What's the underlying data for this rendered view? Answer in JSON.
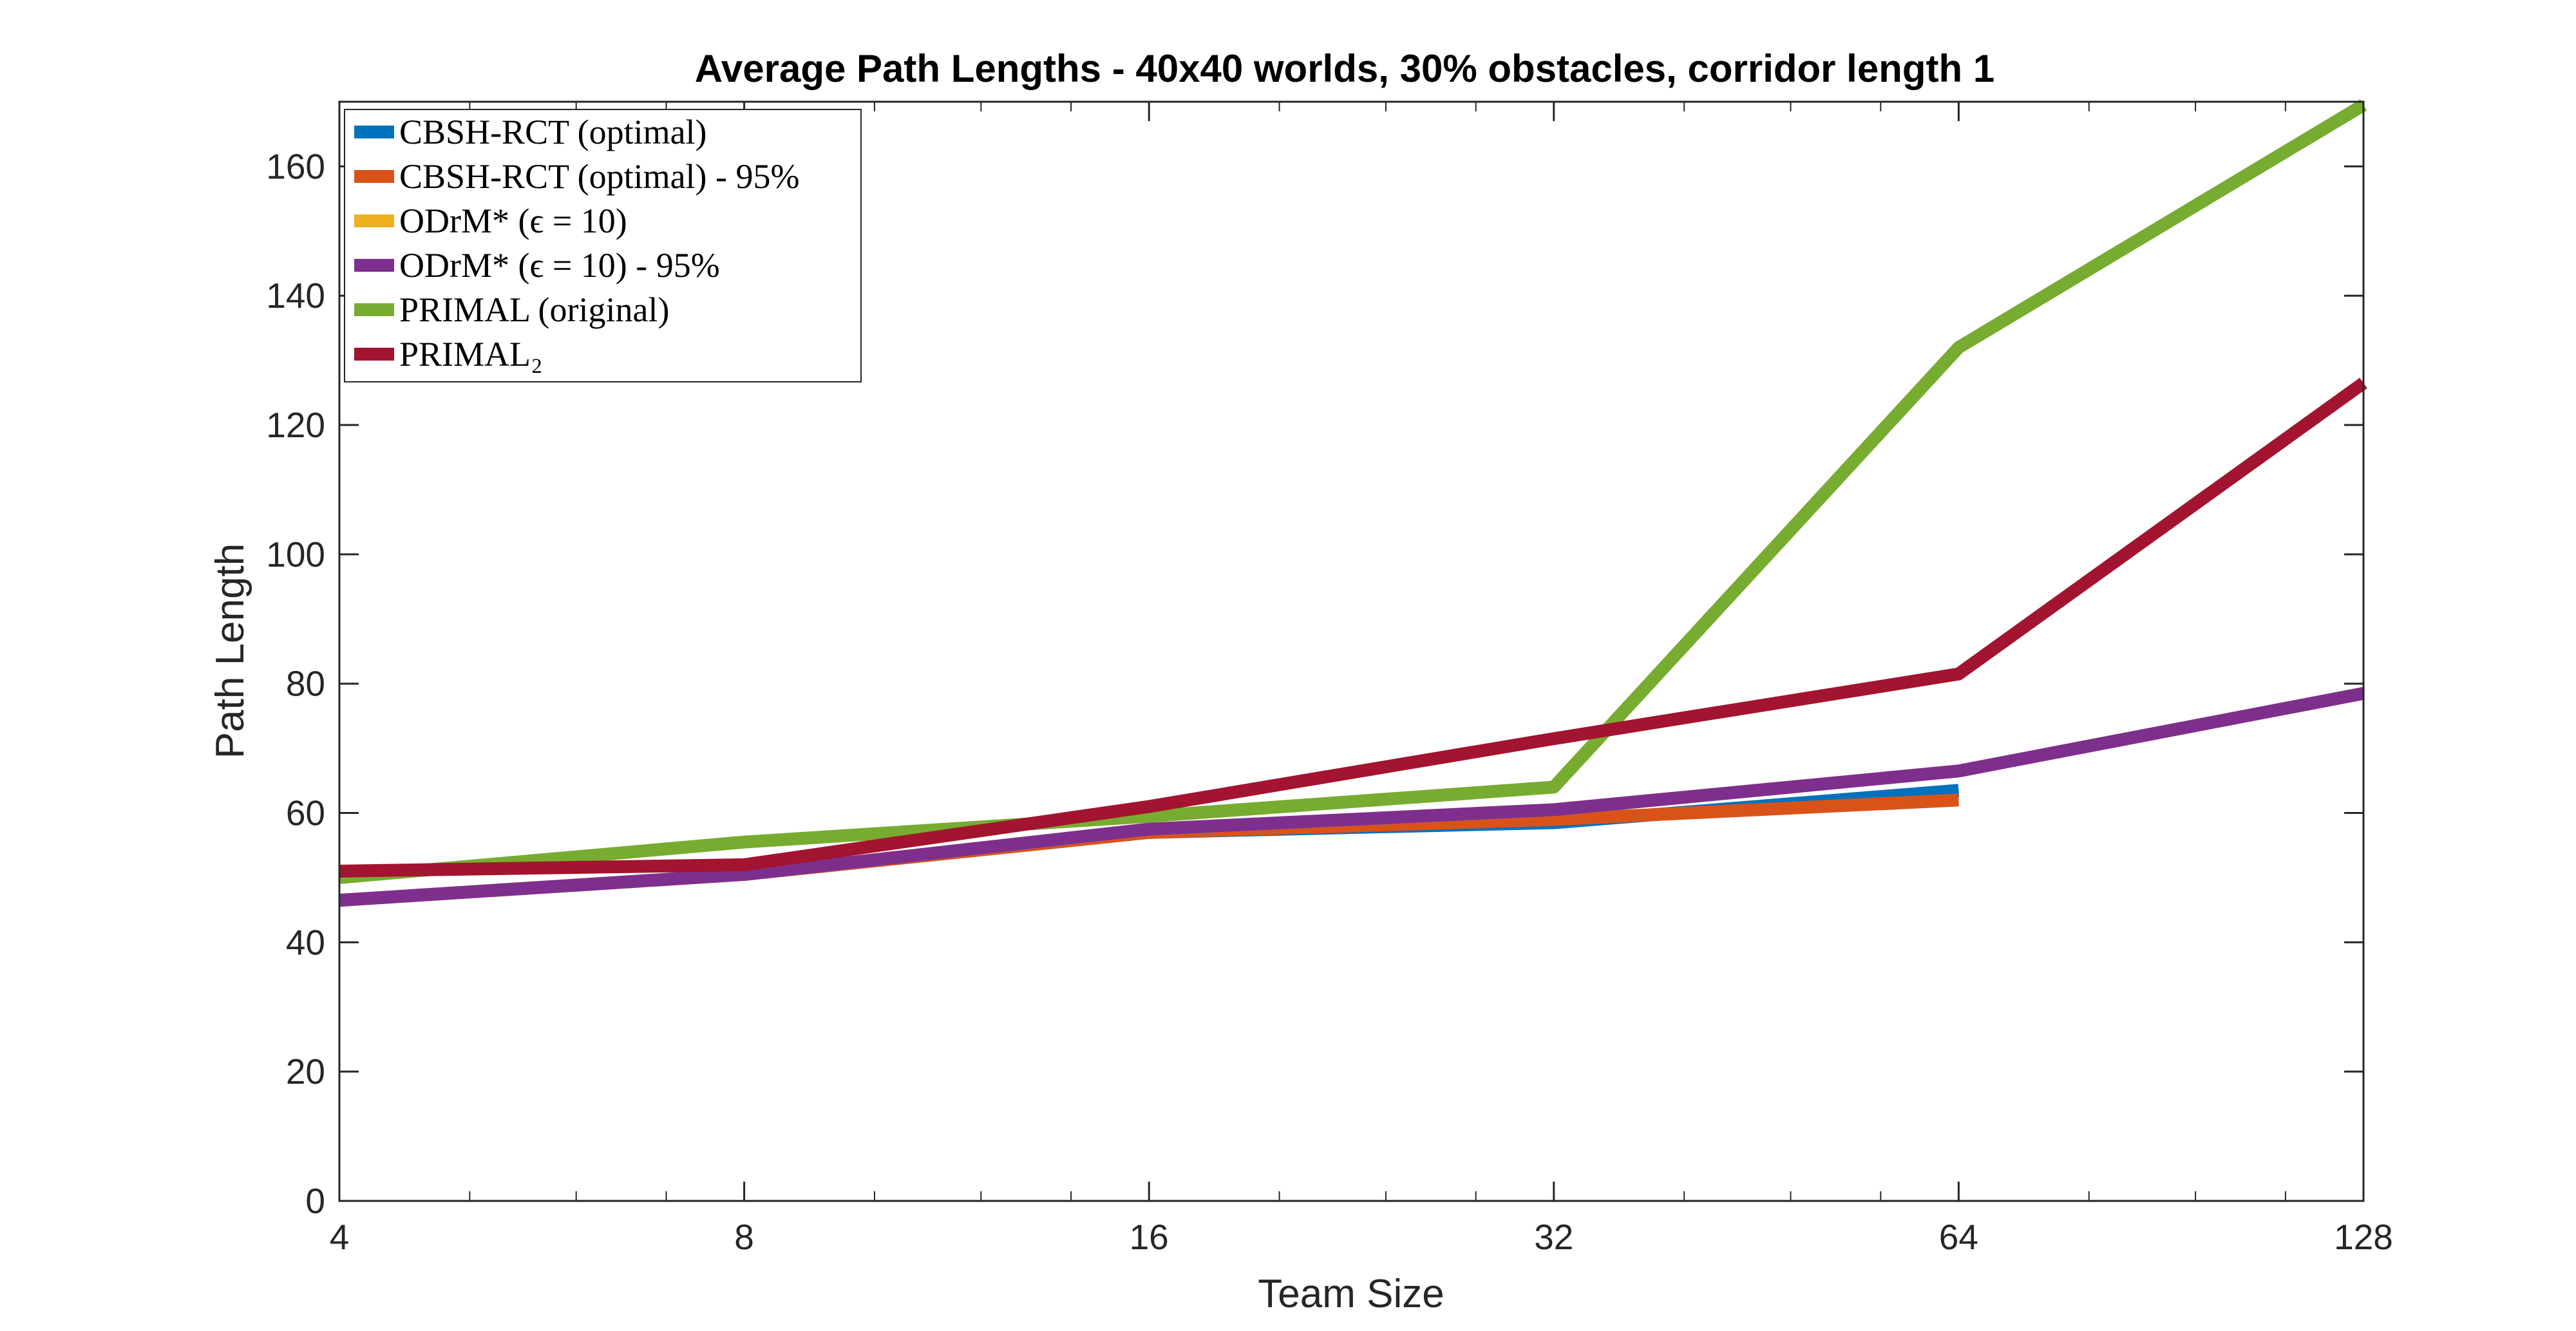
{
  "chart_data": {
    "type": "line",
    "title": "Average Path Lengths - 40x40 worlds, 30% obstacles, corridor length 1",
    "xlabel": "Team Size",
    "ylabel": "Path Length",
    "xscale": "log2",
    "xlim": [
      4,
      128
    ],
    "ylim": [
      0,
      170
    ],
    "xticks": [
      4,
      8,
      16,
      32,
      64,
      128
    ],
    "xtick_labels": [
      "4",
      "8",
      "16",
      "32",
      "64",
      "128"
    ],
    "yticks": [
      0,
      20,
      40,
      60,
      80,
      100,
      120,
      140,
      160
    ],
    "ytick_labels": [
      "0",
      "20",
      "40",
      "60",
      "80",
      "100",
      "120",
      "140",
      "160"
    ],
    "grid": false,
    "legend_position": "top-left",
    "series": [
      {
        "name": "CBSH-RCT (optimal)",
        "color": "#0072BD",
        "x": [
          4,
          8,
          16,
          32,
          64
        ],
        "values": [
          46.5,
          50.5,
          57.0,
          58.5,
          63.5
        ]
      },
      {
        "name": "CBSH-RCT (optimal) - 95%",
        "color": "#D95319",
        "x": [
          4,
          8,
          16,
          32,
          64
        ],
        "values": [
          46.5,
          50.5,
          57.0,
          59.0,
          62.0
        ]
      },
      {
        "name": "ODrM* (ϵ = 10)",
        "color": "#EDB120",
        "x": [
          4,
          8,
          16,
          32,
          64,
          128
        ],
        "values": [
          46.5,
          50.5,
          57.5,
          60.5,
          66.5,
          78.5
        ]
      },
      {
        "name": "ODrM* (ϵ = 10) - 95%",
        "color": "#7E2F8E",
        "x": [
          4,
          8,
          16,
          32,
          64,
          128
        ],
        "values": [
          46.5,
          50.5,
          57.5,
          60.5,
          66.5,
          78.5
        ]
      },
      {
        "name": "PRIMAL (original)",
        "color": "#77AC30",
        "x": [
          4,
          8,
          16,
          32,
          64,
          128
        ],
        "values": [
          50.0,
          55.5,
          59.5,
          64.0,
          132.0,
          169.5
        ]
      },
      {
        "name": "PRIMAL₂",
        "color": "#A2142F",
        "x": [
          4,
          8,
          16,
          32,
          64,
          128
        ],
        "values": [
          51.0,
          52.0,
          61.0,
          71.5,
          81.5,
          126.5
        ]
      }
    ]
  }
}
